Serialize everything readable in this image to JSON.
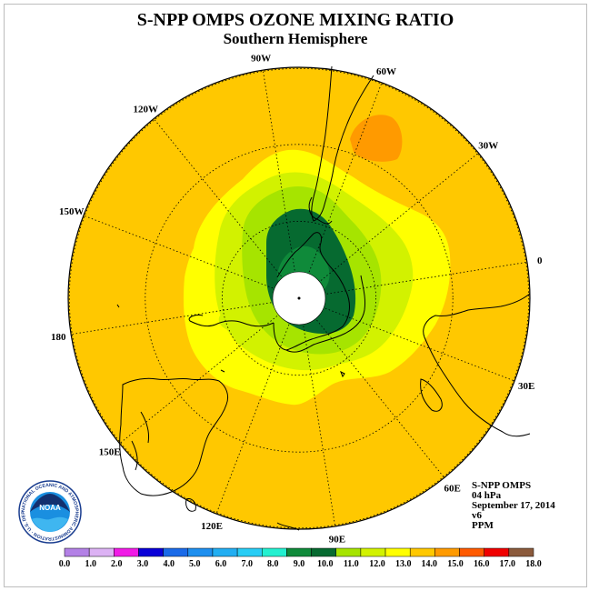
{
  "title": "S-NPP OMPS OZONE MIXING RATIO",
  "subtitle": "Southern Hemisphere",
  "longitude_labels": [
    "90W",
    "60W",
    "30W",
    "0",
    "30E",
    "60E",
    "90E",
    "120E",
    "150E",
    "180",
    "150W",
    "120W"
  ],
  "info": {
    "instrument": "S-NPP OMPS",
    "level": "04 hPa",
    "date": "September 17, 2014",
    "version": "v6",
    "units": "PPM"
  },
  "logo": {
    "agency": "NOAA",
    "ring_text": "NATIONAL OCEANIC AND ATMOSPHERIC ADMINISTRATION · U.S. DEPARTMENT OF COMMERCE"
  },
  "colorbar": {
    "ticks": [
      "0.0",
      "1.0",
      "2.0",
      "3.0",
      "4.0",
      "5.0",
      "6.0",
      "7.0",
      "8.0",
      "9.0",
      "10.0",
      "11.0",
      "12.0",
      "13.0",
      "14.0",
      "15.0",
      "16.0",
      "17.0",
      "18.0"
    ],
    "colors": [
      "#b381e6",
      "#dcb2f4",
      "#f01ae6",
      "#0a00d8",
      "#1a6ae8",
      "#1e8fef",
      "#22aef2",
      "#28cdf5",
      "#23f0d0",
      "#0f8a3a",
      "#066a30",
      "#a6e400",
      "#d2f200",
      "#ffff00",
      "#ffc800",
      "#ff9a00",
      "#ff5a00",
      "#f00000",
      "#8b5a3c"
    ]
  },
  "map_colors": {
    "background_13_14": "#ffc800",
    "band_12_13": "#ffff00",
    "band_11_12": "#d2f200",
    "band_10_11": "#a6e400",
    "band_9_10": "#066a30",
    "band_8_9": "#0f8a3a",
    "max_14_15": "#ff9a00"
  }
}
